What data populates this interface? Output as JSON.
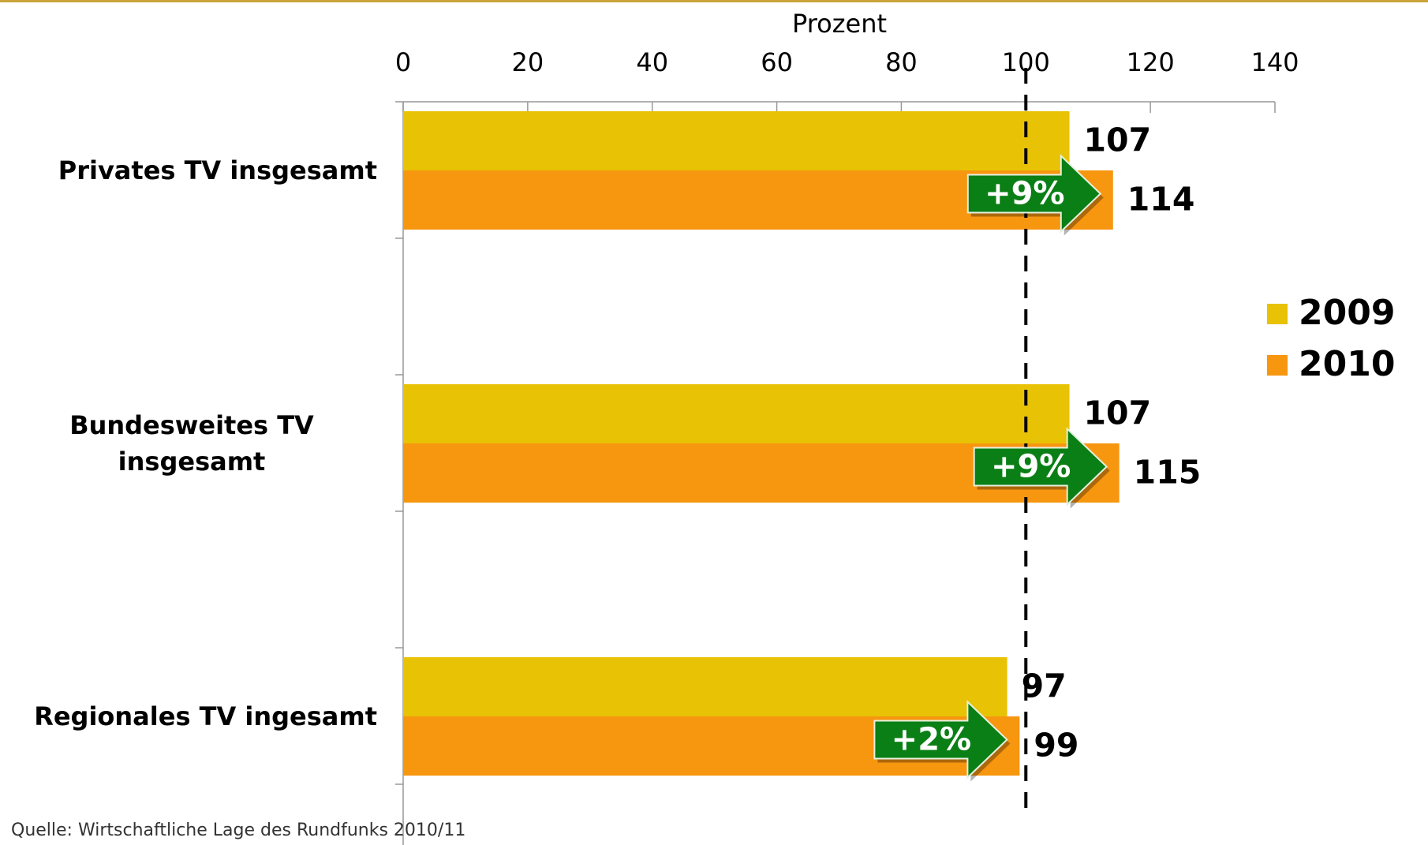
{
  "chart_data": {
    "type": "bar",
    "orientation": "horizontal",
    "x_label": "Prozent",
    "categories": [
      "Privates TV insgesamt",
      "Bundesweites TV insgesamt",
      "Regionales TV ingesamt"
    ],
    "series": [
      {
        "name": "2009",
        "color": "#e8c204",
        "values": [
          107,
          107,
          97
        ]
      },
      {
        "name": "2010",
        "color": "#f7960f",
        "values": [
          114,
          115,
          99
        ]
      }
    ],
    "annotations": [
      "+9%",
      "+9%",
      "+2%"
    ],
    "annotation_color": "#0a7f15",
    "reference_line": 100,
    "xlim": [
      0,
      140
    ],
    "xticks": [
      0,
      20,
      40,
      60,
      80,
      100,
      120,
      140
    ],
    "legend": "right",
    "source": "Quelle: Wirtschaftliche Lage des Rundfunks 2010/11"
  }
}
